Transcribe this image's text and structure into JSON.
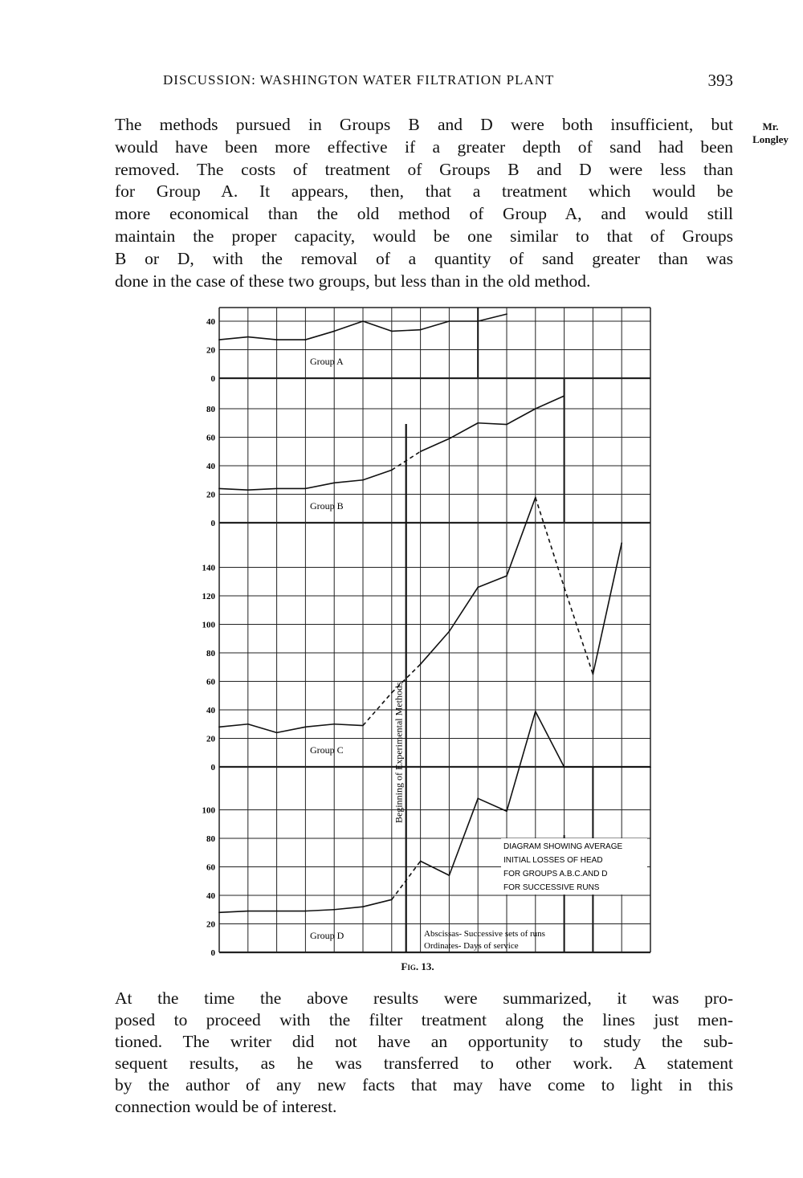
{
  "header": {
    "running_title": "DISCUSSION: WASHINGTON WATER FILTRATION PLANT",
    "page_number": "393"
  },
  "margin_note": {
    "line1": "Mr.",
    "line2": "Longley"
  },
  "paragraph1": [
    "The methods pursued in Groups B and D were both insufficient, but",
    "would have been more effective if a greater depth of sand had been",
    "removed. The costs of treatment of Groups B and D were less than",
    "for Group A. It appears, then, that a treatment which would be",
    "more economical than the old method of Group A, and would still",
    "maintain the proper capacity, would be one similar to that of Groups",
    "B or D, with the removal of a quantity of sand greater than was",
    "done in the case of these two groups, but less than in the old method."
  ],
  "figure_caption": "Fig. 13.",
  "paragraph2": [
    "At the time the above results were summarized, it was pro-",
    "posed to proceed with the filter treatment along the lines just men-",
    "tioned. The writer did not have an opportunity to study the sub-",
    "sequent results, as he was transferred to other work. A statement",
    "by the author of any new facts that may have come to light in this",
    "connection would be of interest."
  ],
  "chart_data": {
    "type": "line",
    "x": [
      0,
      1,
      2,
      3,
      4,
      5,
      6,
      7,
      8,
      9,
      10,
      11,
      12,
      13,
      14,
      15
    ],
    "grid": true,
    "vertical_marker": {
      "label": "Beginning of Experimental Methods",
      "x": 6.5
    },
    "annotation_box": [
      "DIAGRAM SHOWING AVERAGE",
      "INITIAL LOSSES OF HEAD",
      "FOR GROUPS A.B.C.AND D",
      "FOR SUCCESSIVE RUNS"
    ],
    "axes_note": [
      "Abscissas- Successive sets of runs",
      "Ordinates- Days of service"
    ],
    "panels": [
      {
        "label": "Group A",
        "y_ticks": [
          0,
          20,
          40
        ],
        "values": [
          27,
          29,
          27,
          27,
          33,
          40,
          33,
          34,
          40,
          40,
          45
        ],
        "dashed_segments": []
      },
      {
        "label": "Group B",
        "y_ticks": [
          0,
          20,
          40,
          60,
          80
        ],
        "values": [
          24,
          23,
          24,
          24,
          28,
          30,
          37,
          50,
          59,
          70,
          69,
          80,
          89
        ],
        "dashed_segments": [
          6
        ]
      },
      {
        "label": "Group C",
        "y_ticks": [
          0,
          20,
          40,
          60,
          80,
          100,
          120,
          140
        ],
        "values": [
          28,
          30,
          24,
          28,
          30,
          29,
          52,
          72,
          95,
          126,
          134,
          189,
          126,
          65,
          157
        ],
        "dashed_segments": [
          5,
          6,
          11,
          12
        ]
      },
      {
        "label": "Group D",
        "y_ticks": [
          0,
          20,
          40,
          60,
          80,
          100
        ],
        "values": [
          28,
          29,
          29,
          29,
          30,
          32,
          37,
          64,
          54,
          108,
          99,
          169,
          130,
          130,
          130,
          130
        ],
        "dashed_segments": [
          6
        ]
      }
    ]
  }
}
